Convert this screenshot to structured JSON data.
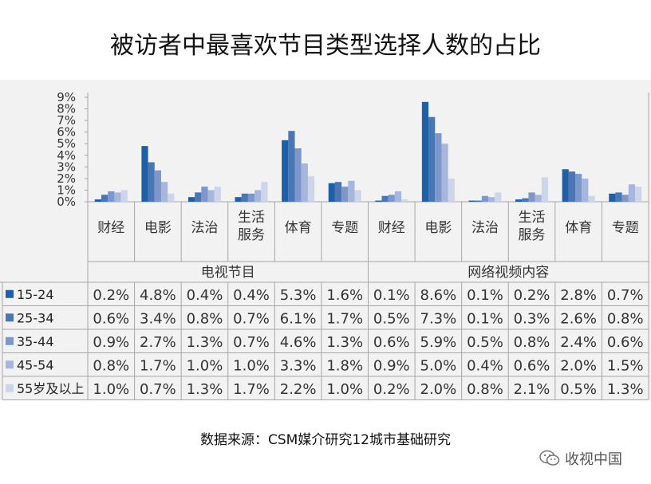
{
  "title": "被访者中最喜欢节目类型选择人数的占比",
  "source": "数据来源：CSM媒介研究12城市基础研究",
  "watermark": "收视中国",
  "colors": [
    "#1f5fa6",
    "#4a76b4",
    "#7d97ca",
    "#a7b6dc",
    "#cdd5ea"
  ],
  "chart_data": {
    "type": "bar",
    "ylim": [
      0,
      9
    ],
    "yticks": [
      "0%",
      "1%",
      "2%",
      "3%",
      "4%",
      "5%",
      "6%",
      "7%",
      "8%",
      "9%"
    ],
    "groups": [
      {
        "label": "电视节目",
        "categories": [
          "财经",
          "电影",
          "法治",
          "生活\n服务",
          "体育",
          "专题"
        ]
      },
      {
        "label": "网络视频内容",
        "categories": [
          "财经",
          "电影",
          "法治",
          "生活\n服务",
          "体育",
          "专题"
        ]
      }
    ],
    "series": [
      {
        "name": "15-24",
        "values": [
          0.2,
          4.8,
          0.4,
          0.4,
          5.3,
          1.6,
          0.1,
          8.6,
          0.1,
          0.2,
          2.8,
          0.7
        ]
      },
      {
        "name": "25-34",
        "values": [
          0.6,
          3.4,
          0.8,
          0.7,
          6.1,
          1.7,
          0.5,
          7.3,
          0.1,
          0.3,
          2.6,
          0.8
        ]
      },
      {
        "name": "35-44",
        "values": [
          0.9,
          2.7,
          1.3,
          0.7,
          4.6,
          1.3,
          0.6,
          5.9,
          0.5,
          0.8,
          2.4,
          0.6
        ]
      },
      {
        "name": "45-54",
        "values": [
          0.8,
          1.7,
          1.0,
          1.0,
          3.3,
          1.8,
          0.9,
          5.0,
          0.4,
          0.6,
          2.0,
          1.5
        ]
      },
      {
        "name": "55岁及以上",
        "values": [
          1.0,
          0.7,
          1.3,
          1.7,
          2.2,
          1.0,
          0.2,
          2.0,
          0.8,
          2.1,
          0.5,
          1.3
        ]
      }
    ]
  }
}
